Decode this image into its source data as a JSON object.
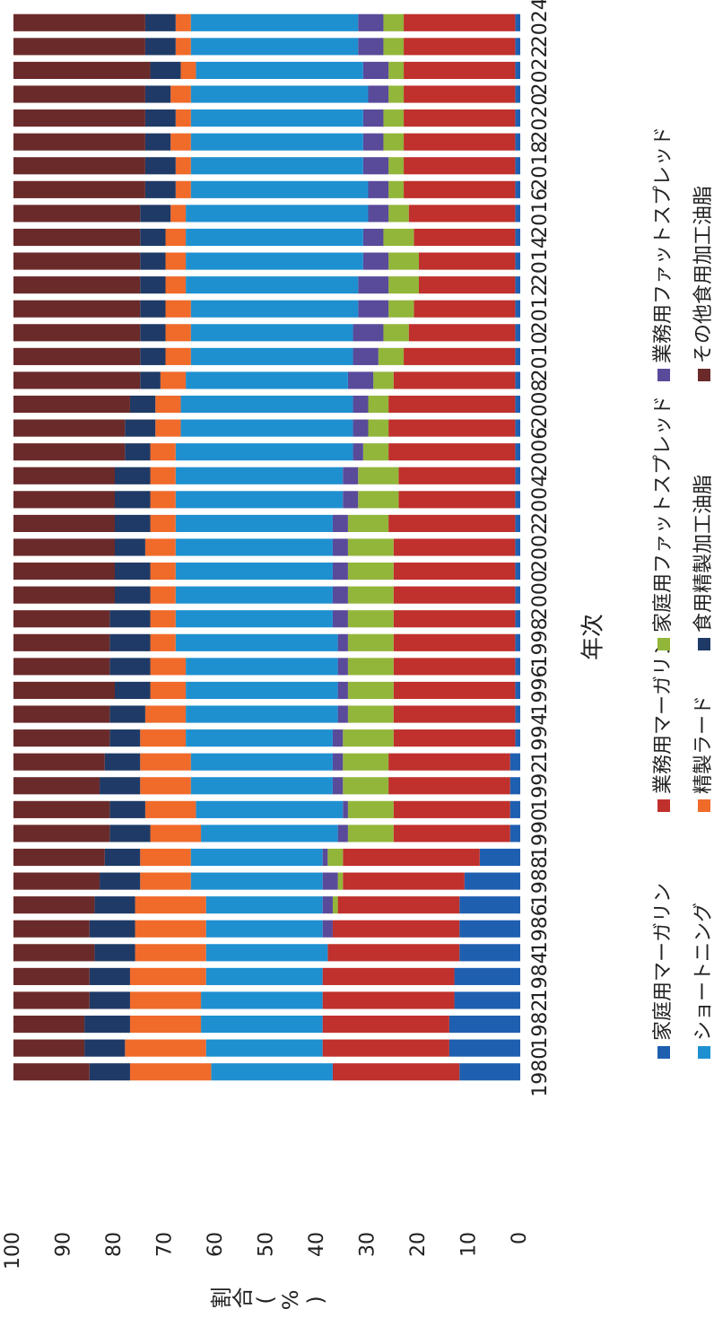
{
  "chart_data": {
    "type": "stacked-bar",
    "y_label": "割合(%)",
    "x_label": "年次",
    "categories": [
      "1980",
      null,
      "1982",
      null,
      "1984",
      null,
      "1986",
      null,
      "1988",
      null,
      "1990",
      null,
      "1992",
      null,
      "1994",
      null,
      "1996",
      null,
      "1998",
      null,
      "2000",
      null,
      "2002",
      null,
      "2004",
      null,
      "2006",
      null,
      "2008",
      null,
      "2010",
      null,
      "2012",
      null,
      "2014",
      null,
      "2016",
      null,
      "2018",
      null,
      "2020",
      null,
      "2022",
      null,
      "2024"
    ],
    "ylim": [
      0,
      100
    ],
    "yticks": [
      0,
      10,
      20,
      30,
      40,
      50,
      60,
      70,
      80,
      90,
      100
    ],
    "series": [
      {
        "name": "家庭用マーガリン",
        "color": "#1f5fb0",
        "values": [
          12,
          14,
          14,
          13,
          13,
          12,
          12,
          12,
          11,
          8,
          2,
          2,
          2,
          2,
          1,
          1,
          1,
          1,
          1,
          1,
          1,
          1,
          1,
          1,
          1,
          1,
          1,
          1,
          1,
          1,
          1,
          1,
          1,
          1,
          1,
          1,
          1,
          1,
          1,
          1,
          1,
          1,
          1,
          1,
          1
        ]
      },
      {
        "name": "業務用マーガリン",
        "color": "#c0302c",
        "values": [
          25,
          25,
          25,
          26,
          26,
          26,
          25,
          24,
          24,
          27,
          23,
          23,
          24,
          24,
          24,
          24,
          24,
          24,
          24,
          24,
          24,
          24,
          24,
          25,
          23,
          23,
          25,
          25,
          25,
          24,
          22,
          21,
          20,
          19,
          19,
          20,
          21,
          22,
          22,
          22,
          22,
          22,
          22,
          22,
          22
        ]
      },
      {
        "name": "家庭用ファットスプレッド",
        "color": "#92b63a",
        "values": [
          0,
          0,
          0,
          0,
          0,
          0,
          0,
          1,
          1,
          3,
          9,
          9,
          9,
          9,
          10,
          9,
          9,
          9,
          9,
          9,
          9,
          9,
          9,
          8,
          8,
          8,
          5,
          4,
          4,
          4,
          5,
          5,
          5,
          6,
          6,
          6,
          4,
          3,
          3,
          4,
          4,
          3,
          3,
          4,
          4
        ]
      },
      {
        "name": "業務用ファットスプレッド",
        "color": "#5a4a9a",
        "values": [
          0,
          0,
          0,
          0,
          0,
          0,
          2,
          2,
          3,
          1,
          2,
          1,
          2,
          2,
          2,
          2,
          2,
          2,
          2,
          3,
          3,
          3,
          3,
          3,
          3,
          3,
          2,
          3,
          3,
          5,
          5,
          6,
          6,
          6,
          5,
          4,
          4,
          4,
          5,
          4,
          4,
          4,
          5,
          5,
          5
        ]
      },
      {
        "name": "ショートニング",
        "color": "#1e90d0",
        "values": [
          24,
          23,
          24,
          24,
          23,
          24,
          23,
          23,
          26,
          26,
          27,
          29,
          28,
          28,
          29,
          30,
          30,
          30,
          32,
          31,
          31,
          31,
          31,
          31,
          33,
          33,
          35,
          34,
          34,
          32,
          32,
          32,
          33,
          34,
          35,
          35,
          36,
          35,
          34,
          34,
          34,
          35,
          33,
          33,
          33
        ]
      },
      {
        "name": "精製ラード",
        "color": "#f06a2a",
        "values": [
          16,
          16,
          14,
          14,
          15,
          14,
          14,
          14,
          10,
          10,
          10,
          10,
          10,
          10,
          9,
          8,
          7,
          7,
          5,
          5,
          5,
          5,
          6,
          5,
          5,
          5,
          5,
          5,
          5,
          5,
          5,
          5,
          5,
          4,
          4,
          4,
          3,
          3,
          3,
          4,
          3,
          4,
          3,
          3,
          3
        ]
      },
      {
        "name": "食用精製加工油脂",
        "color": "#1f3a66",
        "values": [
          8,
          8,
          9,
          8,
          8,
          8,
          9,
          8,
          8,
          7,
          8,
          7,
          8,
          7,
          6,
          7,
          7,
          8,
          8,
          8,
          7,
          7,
          6,
          7,
          7,
          7,
          5,
          6,
          5,
          4,
          5,
          5,
          5,
          5,
          5,
          5,
          6,
          6,
          6,
          5,
          6,
          5,
          6,
          6,
          6
        ]
      },
      {
        "name": "その他食用加工油脂",
        "color": "#6b2a2a",
        "values": [
          15,
          14,
          14,
          15,
          15,
          16,
          15,
          16,
          17,
          18,
          19,
          19,
          17,
          18,
          19,
          19,
          20,
          19,
          19,
          19,
          20,
          20,
          20,
          20,
          20,
          20,
          22,
          22,
          23,
          25,
          25,
          25,
          25,
          25,
          25,
          25,
          25,
          26,
          26,
          26,
          26,
          26,
          27,
          26,
          26
        ]
      }
    ]
  }
}
